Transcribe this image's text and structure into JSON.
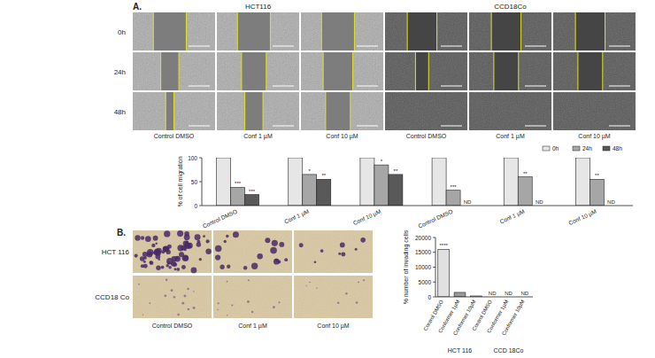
{
  "figure": {
    "panels": [
      {
        "label": "A.",
        "groups": [
          {
            "title": "HCT116",
            "columns": [
              "Control DMSO",
              "Conf 1 µM",
              "Conf 10 µM"
            ]
          },
          {
            "title": "CCD18Co",
            "columns": [
              "Control DMSO",
              "Conf 1 µM",
              "Conf 10 µM"
            ]
          }
        ],
        "rows": [
          "0h",
          "24h",
          "48h"
        ]
      },
      {
        "label": "B.",
        "columns": [
          "Control DMSO",
          "Conf 1 µM",
          "Conf 10 µM"
        ],
        "rows": [
          "HCT 116",
          "CCD18 Co"
        ]
      }
    ]
  },
  "chart_data": [
    {
      "type": "bar",
      "y_label": "% of cell migration",
      "categories": [
        "Control DMSO",
        "Conf 1 µM",
        "Conf 10 µM",
        "Control DMSO",
        "Conf 1 µM",
        "Conf 10 µM"
      ],
      "series": [
        {
          "name": "0h",
          "color": "#e6e6e6",
          "values": [
            100,
            100,
            100,
            100,
            100,
            100
          ]
        },
        {
          "name": "24h",
          "color": "#a6a6a6",
          "values": [
            38,
            65,
            85,
            32,
            60,
            55
          ]
        },
        {
          "name": "48h",
          "color": "#595959",
          "values": [
            23,
            55,
            65,
            null,
            null,
            null
          ]
        }
      ],
      "ylim": [
        0,
        100
      ],
      "yticks": [
        0,
        50,
        100
      ],
      "grid": false,
      "legend": "top-right",
      "annotations": [
        {
          "text": "***",
          "category": 0,
          "series": 1
        },
        {
          "text": "***",
          "category": 0,
          "series": 2
        },
        {
          "text": "*",
          "category": 1,
          "series": 1
        },
        {
          "text": "**",
          "category": 1,
          "series": 2
        },
        {
          "text": "*",
          "category": 2,
          "series": 1
        },
        {
          "text": "**",
          "category": 2,
          "series": 2
        },
        {
          "text": "***",
          "category": 3,
          "series": 1
        },
        {
          "text": "ND",
          "category": 3,
          "series": 2
        },
        {
          "text": "**",
          "category": 4,
          "series": 1
        },
        {
          "text": "ND",
          "category": 4,
          "series": 2
        },
        {
          "text": "**",
          "category": 5,
          "series": 1
        },
        {
          "text": "ND",
          "category": 5,
          "series": 2
        }
      ]
    },
    {
      "type": "bar",
      "y_label": "% number of invading cells",
      "categories": [
        "Control DMSO",
        "Conformer 1µM",
        "Conformer 10µM",
        "Control DMSO",
        "Conformer 1µM",
        "Conformer 10µM"
      ],
      "values": [
        16000,
        1500,
        300,
        null,
        null,
        null
      ],
      "colors": [
        "#e0e0e0",
        "#9a9a9a",
        "#ffffff",
        "#e0e0e0",
        "#9a9a9a",
        "#ffffff"
      ],
      "group_labels": [
        "HCT 116",
        "CCD 18Co"
      ],
      "ylim": [
        0,
        20000
      ],
      "yticks": [
        0,
        5000,
        10000,
        15000,
        20000
      ],
      "grid": false,
      "annotations": [
        {
          "text": "****",
          "category": 0
        },
        {
          "text": "ND",
          "category": 3
        },
        {
          "text": "ND",
          "category": 4
        },
        {
          "text": "ND",
          "category": 5
        }
      ]
    }
  ]
}
